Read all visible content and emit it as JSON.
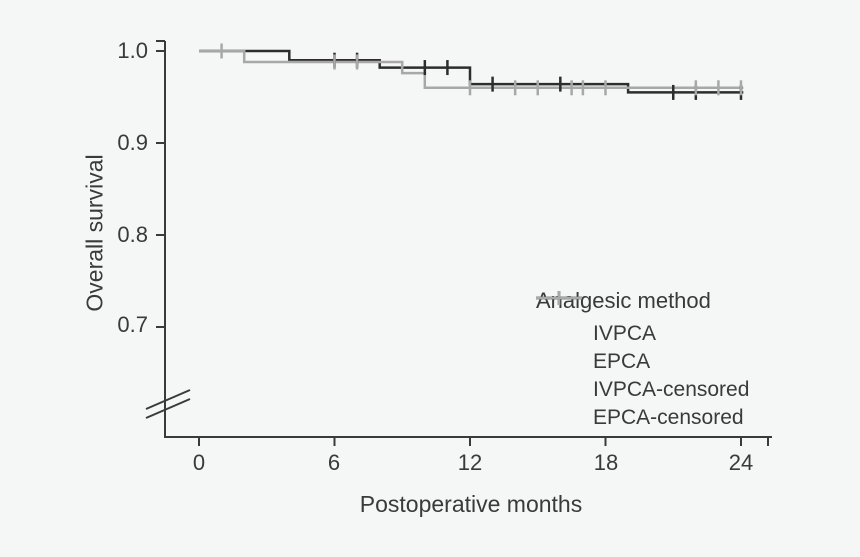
{
  "figure": {
    "background_color": "#f5f6f6",
    "axis_color": "#3a3a3a",
    "text_color": "#3a3a3a"
  },
  "chart_data": {
    "type": "line",
    "subtype": "kaplan_meier_step_survival",
    "title": "",
    "xlabel": "Postoperative months",
    "ylabel": "Overall survival",
    "x_tick_labels": [
      "0",
      "6",
      "12",
      "18",
      "24"
    ],
    "x_tick_values": [
      0,
      6,
      12,
      18,
      24
    ],
    "y_tick_labels": [
      "1.0",
      "0.9",
      "0.8",
      "0.7"
    ],
    "y_tick_values": [
      1.0,
      0.9,
      0.8,
      0.7
    ],
    "xlim": [
      0,
      25.3
    ],
    "ylim_shown": [
      0.65,
      1.0
    ],
    "y_axis_break": true,
    "grid": false,
    "legend_position": "inside-lower-right",
    "legend_title": "Analgesic method",
    "series": [
      {
        "name": "IVPCA",
        "type": "step",
        "color": "#2d2d2d",
        "points": [
          [
            0,
            1.0
          ],
          [
            4,
            1.0
          ],
          [
            4,
            0.99
          ],
          [
            8,
            0.99
          ],
          [
            8,
            0.982
          ],
          [
            12,
            0.982
          ],
          [
            12,
            0.964
          ],
          [
            19,
            0.964
          ],
          [
            19,
            0.955
          ],
          [
            24.1,
            0.955
          ]
        ]
      },
      {
        "name": "EPCA",
        "type": "step",
        "color": "#a8a8a8",
        "points": [
          [
            0,
            1.0
          ],
          [
            2,
            1.0
          ],
          [
            2,
            0.988
          ],
          [
            9,
            0.988
          ],
          [
            9,
            0.976
          ],
          [
            10,
            0.976
          ],
          [
            10,
            0.96
          ],
          [
            24.1,
            0.96
          ]
        ]
      },
      {
        "name": "IVPCA-censored",
        "type": "censor_marks",
        "color": "#2d2d2d",
        "points": [
          [
            6,
            0.99
          ],
          [
            7,
            0.99
          ],
          [
            10,
            0.982
          ],
          [
            11,
            0.982
          ],
          [
            13,
            0.964
          ],
          [
            16,
            0.964
          ],
          [
            21,
            0.955
          ],
          [
            22,
            0.955
          ],
          [
            24,
            0.955
          ]
        ]
      },
      {
        "name": "EPCA-censored",
        "type": "censor_marks",
        "color": "#a8a8a8",
        "points": [
          [
            1,
            1.0
          ],
          [
            6,
            0.988
          ],
          [
            7,
            0.988
          ],
          [
            12,
            0.96
          ],
          [
            14,
            0.96
          ],
          [
            15,
            0.96
          ],
          [
            16.5,
            0.96
          ],
          [
            17,
            0.96
          ],
          [
            18,
            0.96
          ],
          [
            22,
            0.96
          ],
          [
            23,
            0.96
          ],
          [
            24,
            0.96
          ]
        ]
      }
    ]
  },
  "legend": {
    "title": "Analgesic method",
    "items": [
      {
        "label": "IVPCA",
        "color": "#2d2d2d",
        "censored": false
      },
      {
        "label": "EPCA",
        "color": "#a8a8a8",
        "censored": false
      },
      {
        "label": "IVPCA-censored",
        "color": "#2d2d2d",
        "censored": true
      },
      {
        "label": "EPCA-censored",
        "color": "#a8a8a8",
        "censored": true
      }
    ]
  }
}
